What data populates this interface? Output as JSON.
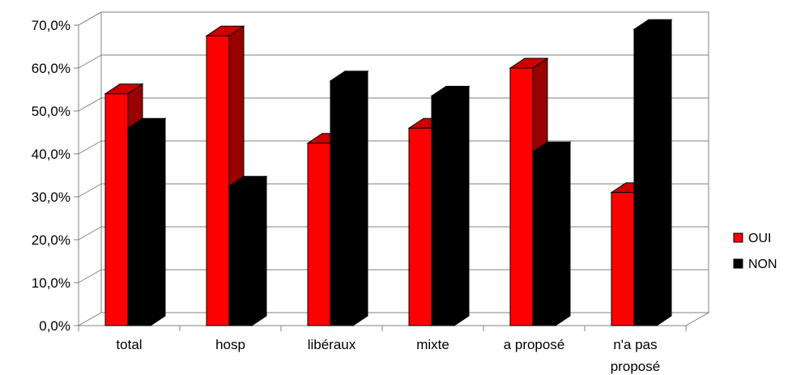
{
  "chart_data": {
    "type": "bar",
    "title": "",
    "xlabel": "",
    "ylabel": "",
    "categories": [
      "total",
      "hosp",
      "libéraux",
      "mixte",
      "a proposé",
      "n'a pas proposé"
    ],
    "category_lines": [
      [
        "total"
      ],
      [
        "hosp"
      ],
      [
        "libéraux"
      ],
      [
        "mixte"
      ],
      [
        "a proposé"
      ],
      [
        "n'a pas",
        "proposé"
      ]
    ],
    "series": [
      {
        "name": "OUI",
        "values": [
          54.0,
          67.5,
          42.5,
          46.0,
          60.0,
          31.0
        ],
        "color": "#ff0000",
        "side_color": "#990000",
        "top_color": "#cc0000"
      },
      {
        "name": "NON",
        "values": [
          46.0,
          32.5,
          57.0,
          53.5,
          40.5,
          69.0
        ],
        "color": "#000000",
        "side_color": "#000000",
        "top_color": "#000000"
      }
    ],
    "ylim": [
      0,
      70
    ],
    "yticks": [
      "0,0%",
      "10,0%",
      "20,0%",
      "30,0%",
      "40,0%",
      "50,0%",
      "60,0%",
      "70,0%"
    ],
    "ytick_values": [
      0,
      10,
      20,
      30,
      40,
      50,
      60,
      70
    ],
    "grid": true,
    "legend_position": "right"
  }
}
